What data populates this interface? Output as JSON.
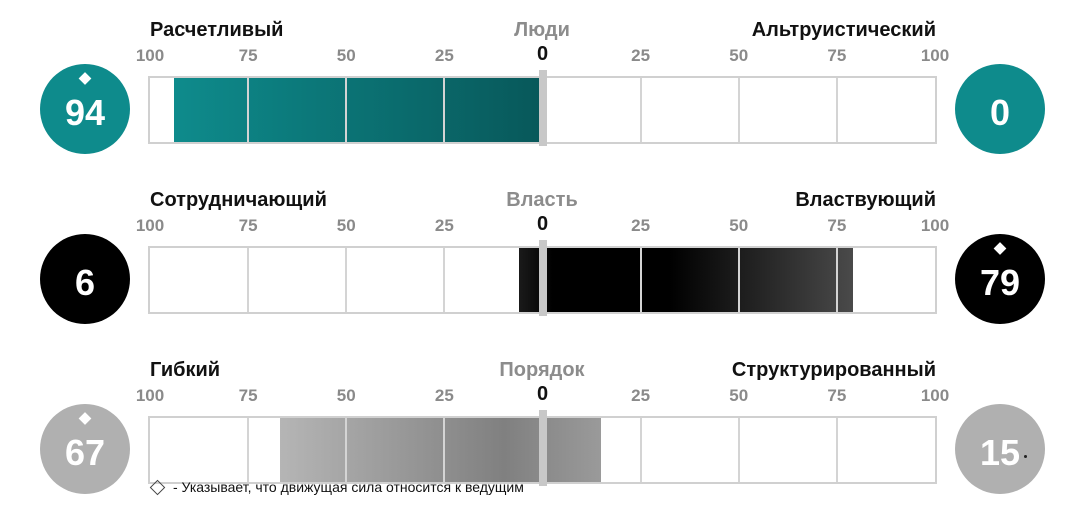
{
  "chart_data": [
    {
      "type": "bar",
      "left_label": "Расчетливый",
      "center_label": "Люди",
      "right_label": "Альтруистический",
      "ticks": [
        "100",
        "75",
        "50",
        "25",
        "0",
        "25",
        "50",
        "75",
        "100"
      ],
      "left_score": "94",
      "right_score": "0",
      "left_driver": true,
      "right_driver": false,
      "bar_range": [
        -94,
        0
      ],
      "color": "#0e8b8c",
      "color_dark": "#08585a"
    },
    {
      "type": "bar",
      "left_label": "Сотрудничающий",
      "center_label": "Власть",
      "right_label": "Властвующий",
      "ticks": [
        "100",
        "75",
        "50",
        "25",
        "0",
        "25",
        "50",
        "75",
        "100"
      ],
      "left_score": "6",
      "right_score": "79",
      "left_driver": false,
      "right_driver": true,
      "bar_range": [
        -6,
        79
      ],
      "color": "#000000",
      "color_dark": "#4a4a4a"
    },
    {
      "type": "bar",
      "left_label": "Гибкий",
      "center_label": "Порядок",
      "right_label": "Структурированный",
      "ticks": [
        "100",
        "75",
        "50",
        "25",
        "0",
        "25",
        "50",
        "75",
        "100"
      ],
      "left_score": "67",
      "right_score": "15",
      "left_driver": true,
      "right_driver": false,
      "bar_range": [
        -67,
        15
      ],
      "color": "#b0b0b0",
      "color_dark": "#7a7a7a"
    }
  ],
  "legend": {
    "text": "- Указывает, что движущая сила относится к ведущим"
  }
}
